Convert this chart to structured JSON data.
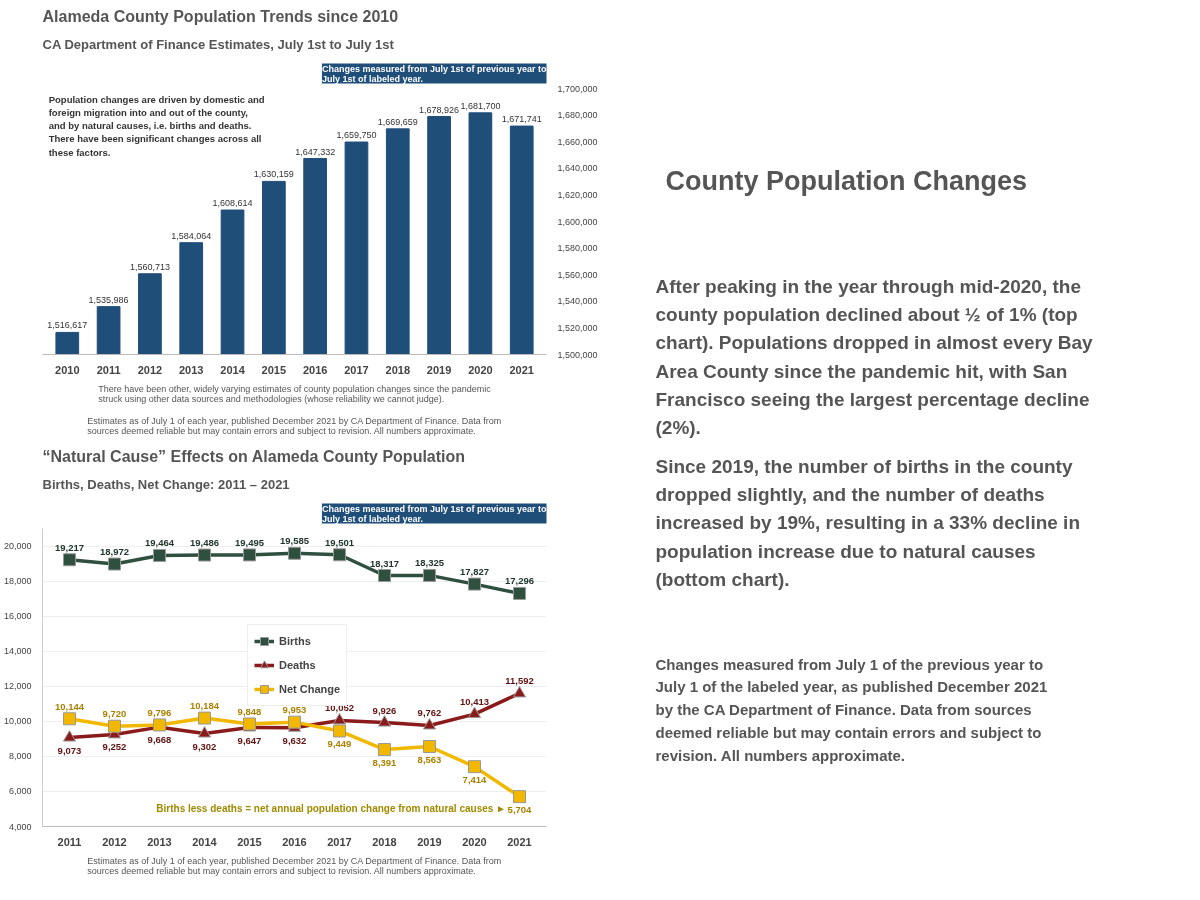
{
  "chart_data": [
    {
      "type": "bar",
      "title": "Alameda County Population Trends since 2010",
      "subtitle": "CA Department of Finance Estimates, July 1st to July 1st",
      "categories": [
        "2010",
        "2011",
        "2012",
        "2013",
        "2014",
        "2015",
        "2016",
        "2017",
        "2018",
        "2019",
        "2020",
        "2021"
      ],
      "values": [
        1516617,
        1535986,
        1560713,
        1584064,
        1608614,
        1630159,
        1647332,
        1659750,
        1669659,
        1678926,
        1681700,
        1671741
      ],
      "value_labels": [
        "1,516,617",
        "1,535,986",
        "1,560,713",
        "1,584,064",
        "1,608,614",
        "1,630,159",
        "1,647,332",
        "1,659,750",
        "1,669,659",
        "1,678,926",
        "1,681,700",
        "1,671,741"
      ],
      "color": "#1f4e79",
      "ylim": [
        1500000,
        1700000
      ],
      "yticks": [
        {
          "value": 1500000,
          "label": "1,500,000"
        },
        {
          "value": 1520000,
          "label": "1,520,000"
        },
        {
          "value": 1540000,
          "label": "1,540,000"
        },
        {
          "value": 1560000,
          "label": "1,560,000"
        },
        {
          "value": 1580000,
          "label": "1,580,000"
        },
        {
          "value": 1600000,
          "label": "1,600,000"
        },
        {
          "value": 1620000,
          "label": "1,620,000"
        },
        {
          "value": 1640000,
          "label": "1,640,000"
        },
        {
          "value": 1660000,
          "label": "1,660,000"
        },
        {
          "value": 1680000,
          "label": "1,680,000"
        },
        {
          "value": 1700000,
          "label": "1,700,000"
        }
      ],
      "annotations": [
        "Changes measured from July 1st of previous year to July 1st of labeled year.",
        "Population changes are driven by domestic and foreign migration into and out of the county, and by natural causes, i.e. births and deaths. There have been significant changes across all these factors.",
        "There have been other, widely varying estimates of county population changes since the pandemic struck using other data sources and methodologies (whose reliability we cannot judge).",
        "Estimates as of July 1 of each year, published December 2021 by CA Department of Finance. Data from sources deemed reliable but may contain errors and subject to revision. All numbers approximate."
      ]
    },
    {
      "type": "line",
      "title": "“Natural Cause” Effects on Alameda County Population",
      "subtitle": "Births, Deaths, Net Change: 2011 – 2021",
      "categories": [
        "2011",
        "2012",
        "2013",
        "2014",
        "2015",
        "2016",
        "2017",
        "2018",
        "2019",
        "2020",
        "2021"
      ],
      "series": [
        {
          "name": "Births",
          "color": "#2f4f3f",
          "marker": "square",
          "values": [
            19217,
            18972,
            19464,
            19486,
            19495,
            19585,
            19501,
            18317,
            18325,
            17827,
            17296
          ],
          "value_labels": [
            "19,217",
            "18,972",
            "19,464",
            "19,486",
            "19,495",
            "19,585",
            "19,501",
            "18,317",
            "18,325",
            "17,827",
            "17,296"
          ]
        },
        {
          "name": "Deaths",
          "color": "#8b1a1a",
          "marker": "triangle",
          "values": [
            9073,
            9252,
            9668,
            9302,
            9647,
            9632,
            10052,
            9926,
            9762,
            10413,
            11592
          ],
          "value_labels": [
            "9,073",
            "9,252",
            "9,668",
            "9,302",
            "9,647",
            "9,632",
            "10,052",
            "9,926",
            "9,762",
            "10,413",
            "11,592"
          ]
        },
        {
          "name": "Net Change",
          "color": "#f2b800",
          "marker": "square",
          "values": [
            10144,
            9720,
            9796,
            10184,
            9848,
            9953,
            9449,
            8391,
            8563,
            7414,
            5704
          ],
          "value_labels": [
            "10,144",
            "9,720",
            "9,796",
            "10,184",
            "9,848",
            "9,953",
            "9,449",
            "8,391",
            "8,563",
            "7,414",
            "5,704"
          ]
        }
      ],
      "ylim": [
        4000,
        21000
      ],
      "yticks": [
        {
          "value": 4000,
          "label": "4,000"
        },
        {
          "value": 6000,
          "label": "6,000"
        },
        {
          "value": 8000,
          "label": "8,000"
        },
        {
          "value": 10000,
          "label": "10,000"
        },
        {
          "value": 12000,
          "label": "12,000"
        },
        {
          "value": 14000,
          "label": "14,000"
        },
        {
          "value": 16000,
          "label": "16,000"
        },
        {
          "value": 18000,
          "label": "18,000"
        },
        {
          "value": 20000,
          "label": "20,000"
        }
      ],
      "grid": "y",
      "legend": "center",
      "line_style": "solid",
      "annotations": [
        "Changes measured from July 1st of previous year to July 1st of labeled year.",
        "Births less deaths = net annual population change from natural causes ►",
        "Estimates as of July 1 of each year, published December 2021 by CA Department of Finance. Data from sources deemed reliable but may contain errors and subject to revision. All numbers approximate."
      ]
    },
    {
      "type": "other",
      "title": "County Population Changes",
      "annotations": [
        "After peaking in the year through mid-2020, the county population declined about ½ of 1% (top chart). Populations dropped in almost every Bay Area County since the pandemic hit, with San Francisco seeing the largest percentage decline (2%).",
        "Since 2019, the number of births in the county dropped slightly, and the number of deaths increased by 19%, resulting in a 33% decline in population increase due to natural causes (bottom chart).",
        "Changes measured from July 1 of the previous year to July 1 of the labeled year, as published December 2021 by the CA Department of Finance. Data from sources deemed reliable but may contain errors and subject to revision. All numbers approximate."
      ]
    }
  ]
}
